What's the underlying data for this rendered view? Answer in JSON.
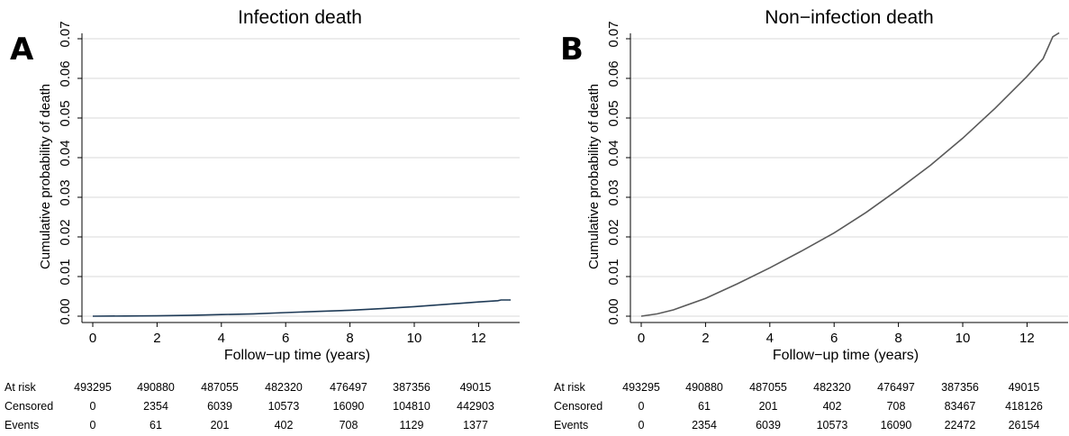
{
  "chart_data": [
    {
      "panel": "A",
      "type": "line",
      "title": "Infection death",
      "xlabel": "Follow−up time (years)",
      "ylabel": "Cumulative probability of death",
      "xlim": [
        0,
        13
      ],
      "ylim": [
        0,
        0.072
      ],
      "xticks": [
        "0",
        "2",
        "4",
        "6",
        "8",
        "10",
        "12"
      ],
      "yticks": [
        "0.00",
        "0.01",
        "0.02",
        "0.03",
        "0.04",
        "0.05",
        "0.06",
        "0.07"
      ],
      "grid": true,
      "line_color": "#1f3b57",
      "x": [
        0,
        1,
        2,
        3,
        4,
        5,
        6,
        7,
        8,
        9,
        10,
        11,
        12,
        12.6,
        12.7,
        13.0
      ],
      "y": [
        0,
        5e-05,
        0.0001,
        0.0002,
        0.0004,
        0.0006,
        0.0009,
        0.0012,
        0.0015,
        0.0019,
        0.0024,
        0.003,
        0.0036,
        0.0039,
        0.0041,
        0.0041
      ],
      "risk_table": {
        "rows": [
          {
            "label": "At risk",
            "values": [
              "493295",
              "490880",
              "487055",
              "482320",
              "476497",
              "387356",
              "49015"
            ]
          },
          {
            "label": "Censored",
            "values": [
              "0",
              "2354",
              "6039",
              "10573",
              "16090",
              "104810",
              "442903"
            ]
          },
          {
            "label": "Events",
            "values": [
              "0",
              "61",
              "201",
              "402",
              "708",
              "1129",
              "1377"
            ]
          }
        ]
      }
    },
    {
      "panel": "B",
      "type": "line",
      "title": "Non−infection death",
      "xlabel": "Follow−up time (years)",
      "ylabel": "Cumulative probability of death",
      "xlim": [
        0,
        13
      ],
      "ylim": [
        0,
        0.072
      ],
      "xticks": [
        "0",
        "2",
        "4",
        "6",
        "8",
        "10",
        "12"
      ],
      "yticks": [
        "0.00",
        "0.01",
        "0.02",
        "0.03",
        "0.04",
        "0.05",
        "0.06",
        "0.07"
      ],
      "grid": true,
      "line_color": "#5a5a5a",
      "x": [
        0,
        0.5,
        1,
        2,
        3,
        4,
        5,
        6,
        7,
        8,
        9,
        10,
        11,
        12,
        12.5,
        12.8,
        13.0
      ],
      "y": [
        0,
        0.0006,
        0.0016,
        0.0045,
        0.0082,
        0.0122,
        0.0165,
        0.021,
        0.0262,
        0.032,
        0.0381,
        0.0449,
        0.0524,
        0.0605,
        0.065,
        0.0705,
        0.0715
      ],
      "risk_table": {
        "rows": [
          {
            "label": "At risk",
            "values": [
              "493295",
              "490880",
              "487055",
              "482320",
              "476497",
              "387356",
              "49015"
            ]
          },
          {
            "label": "Censored",
            "values": [
              "0",
              "61",
              "201",
              "402",
              "708",
              "83467",
              "418126"
            ]
          },
          {
            "label": "Events",
            "values": [
              "0",
              "2354",
              "6039",
              "10573",
              "16090",
              "22472",
              "26154"
            ]
          }
        ]
      }
    }
  ]
}
